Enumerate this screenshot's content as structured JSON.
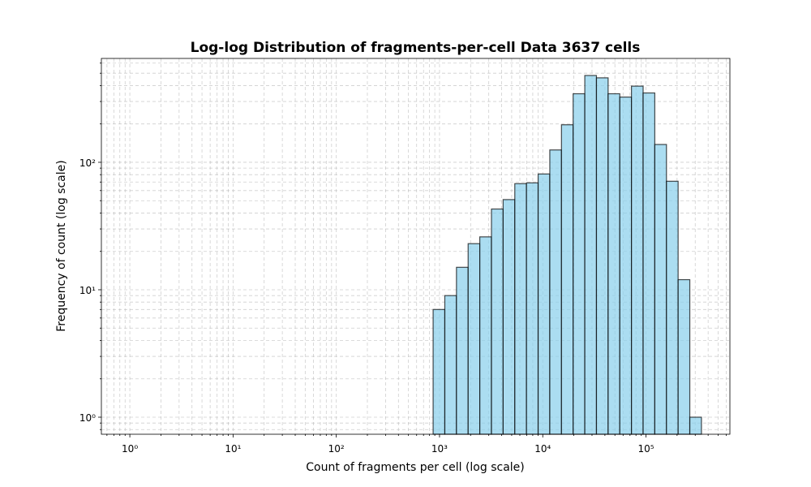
{
  "chart_data": {
    "type": "histogram",
    "title": "Log-log Distribution of fragments-per-cell Data 3637 cells",
    "xlabel": "Count of fragments per cell (log scale)",
    "ylabel": "Frequency of count (log scale)",
    "bins": [
      867,
      1125,
      1459,
      1893,
      2455,
      3185,
      4132,
      5360,
      6953,
      9020,
      11700,
      15180,
      19690,
      25540,
      33130,
      42980,
      55760,
      72330,
      93830,
      121700,
      157900,
      204800,
      265700,
      344700
    ],
    "counts": [
      7,
      9,
      15,
      23,
      26,
      43,
      51,
      68,
      69,
      81,
      125,
      197,
      345,
      480,
      460,
      345,
      325,
      396,
      350,
      138,
      71,
      12,
      1
    ],
    "color": "#87ceeb",
    "edgecolor": "#000000",
    "alpha": 0.7,
    "xscale": "log",
    "yscale": "log",
    "xlim": [
      0.53,
      650000
    ],
    "ylim": [
      0.735,
      653
    ],
    "xticks": [
      {
        "value": 1,
        "label": "10⁰"
      },
      {
        "value": 10,
        "label": "10¹"
      },
      {
        "value": 100,
        "label": "10²"
      },
      {
        "value": 1000,
        "label": "10³"
      },
      {
        "value": 10000,
        "label": "10⁴"
      },
      {
        "value": 100000,
        "label": "10⁵"
      }
    ],
    "yticks": [
      {
        "value": 1,
        "label": "10⁰"
      },
      {
        "value": 10,
        "label": "10¹"
      },
      {
        "value": 100,
        "label": "10²"
      }
    ],
    "grid": true,
    "minor_grid": true
  }
}
